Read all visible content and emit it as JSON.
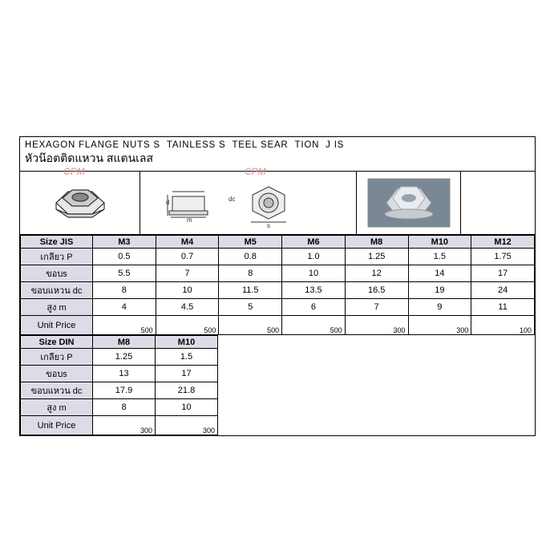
{
  "title_en": "HEXAGON FLANGE NUTS S  TAINLESS S  TEEL SEAR  TION  J IS",
  "title_th": "หัวน๊อตติดแหวน สแตนเลส",
  "watermark": "CPM",
  "jis": {
    "header_label": "Size JIS",
    "sizes": [
      "M3",
      "M4",
      "M5",
      "M6",
      "M8",
      "M10",
      "M12"
    ],
    "rows": [
      {
        "label": "เกลียว P",
        "vals": [
          "0.5",
          "0.7",
          "0.8",
          "1.0",
          "1.25",
          "1.5",
          "1.75"
        ]
      },
      {
        "label": "ขอบs",
        "vals": [
          "5.5",
          "7",
          "8",
          "10",
          "12",
          "14",
          "17"
        ]
      },
      {
        "label": "ขอบแหวน dc",
        "vals": [
          "8",
          "10",
          "11.5",
          "13.5",
          "16.5",
          "19",
          "24"
        ]
      },
      {
        "label": "สูง m",
        "vals": [
          "4",
          "4.5",
          "5",
          "6",
          "7",
          "9",
          "11"
        ]
      }
    ],
    "price_label": "Unit Price",
    "prices": [
      "500",
      "500",
      "500",
      "500",
      "300",
      "300",
      "100"
    ]
  },
  "din": {
    "header_label": "Size DIN",
    "sizes": [
      "M8",
      "M10"
    ],
    "rows": [
      {
        "label": "เกลียว P",
        "vals": [
          "1.25",
          "1.5"
        ]
      },
      {
        "label": "ขอบs",
        "vals": [
          "13",
          "17"
        ]
      },
      {
        "label": "ขอบแหวน dc",
        "vals": [
          "17.9",
          "21.8"
        ]
      },
      {
        "label": "สูง m",
        "vals": [
          "8",
          "10"
        ]
      }
    ],
    "price_label": "Unit Price",
    "prices": [
      "300",
      "300"
    ]
  },
  "colors": {
    "header_bg": "#dcdce6",
    "border": "#000000",
    "bg": "#ffffff",
    "watermark": "#d58a8a"
  }
}
